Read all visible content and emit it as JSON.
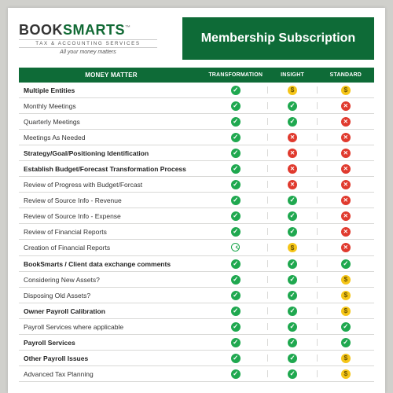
{
  "brand": {
    "name_part1": "B",
    "name_part2": "OOK",
    "name_part3": "SMARTS",
    "tm": "™",
    "subline": "TAX & ACCOUNTING SERVICES",
    "tagline": "All your money matters"
  },
  "title": "Membership Subscription",
  "columns": {
    "matter": "MONEY MATTER",
    "t": "TRANSFORMATION",
    "i": "INSIGHT",
    "s": "STANDARD"
  },
  "colors": {
    "brand_green": "#0e6b37",
    "check_green": "#1fa84f",
    "cross_red": "#e03a2e",
    "dollar_yellow": "#f5c518",
    "row_border": "#d8d8d6",
    "page_bg": "#ffffff",
    "body_bg": "#d0d0cc"
  },
  "icons": {
    "check": "check",
    "cross": "cross",
    "dollar": "dollar",
    "clock": "clock"
  },
  "rows": [
    {
      "name": "Multiple Entities",
      "bold": true,
      "t": "check",
      "i": "dollar",
      "s": "dollar"
    },
    {
      "name": "Monthly Meetings",
      "bold": false,
      "t": "check",
      "i": "check",
      "s": "cross"
    },
    {
      "name": "Quarterly Meetings",
      "bold": false,
      "t": "check",
      "i": "check",
      "s": "cross"
    },
    {
      "name": "Meetings As Needed",
      "bold": false,
      "t": "check",
      "i": "cross",
      "s": "cross"
    },
    {
      "name": "Strategy/Goal/Positioning Identification",
      "bold": true,
      "t": "check",
      "i": "cross",
      "s": "cross"
    },
    {
      "name": "Establish Budget/Forecast Transformation Process",
      "bold": true,
      "t": "check",
      "i": "cross",
      "s": "cross"
    },
    {
      "name": "Review of Progress with Budget/Forcast",
      "bold": false,
      "t": "check",
      "i": "cross",
      "s": "cross"
    },
    {
      "name": "Review of Source Info - Revenue",
      "bold": false,
      "t": "check",
      "i": "check",
      "s": "cross"
    },
    {
      "name": "Review of Source Info - Expense",
      "bold": false,
      "t": "check",
      "i": "check",
      "s": "cross"
    },
    {
      "name": "Review of Financial Reports",
      "bold": false,
      "t": "check",
      "i": "check",
      "s": "cross"
    },
    {
      "name": "Creation of Financial Reports",
      "bold": false,
      "t": "clock",
      "i": "dollar",
      "s": "cross"
    },
    {
      "name": "BookSmarts / Client data exchange comments",
      "bold": true,
      "t": "check",
      "i": "check",
      "s": "check"
    },
    {
      "name": "Considering New Assets?",
      "bold": false,
      "t": "check",
      "i": "check",
      "s": "dollar"
    },
    {
      "name": "Disposing Old Assets?",
      "bold": false,
      "t": "check",
      "i": "check",
      "s": "dollar"
    },
    {
      "name": "Owner Payroll Calibration",
      "bold": true,
      "t": "check",
      "i": "check",
      "s": "dollar"
    },
    {
      "name": "Payroll Services where applicable",
      "bold": false,
      "t": "check",
      "i": "check",
      "s": "check"
    },
    {
      "name": "Payroll Services",
      "bold": true,
      "t": "check",
      "i": "check",
      "s": "check"
    },
    {
      "name": "Other Payroll Issues",
      "bold": true,
      "t": "check",
      "i": "check",
      "s": "dollar"
    },
    {
      "name": "Advanced Tax Planning",
      "bold": false,
      "t": "check",
      "i": "check",
      "s": "dollar"
    }
  ]
}
